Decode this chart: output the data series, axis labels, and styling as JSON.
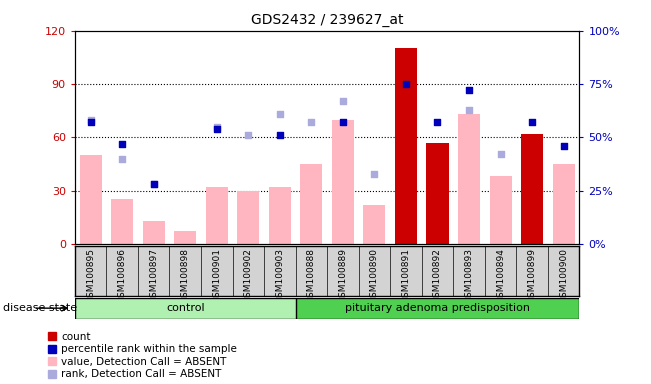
{
  "title": "GDS2432 / 239627_at",
  "samples": [
    "GSM100895",
    "GSM100896",
    "GSM100897",
    "GSM100898",
    "GSM100901",
    "GSM100902",
    "GSM100903",
    "GSM100888",
    "GSM100889",
    "GSM100890",
    "GSM100891",
    "GSM100892",
    "GSM100893",
    "GSM100894",
    "GSM100899",
    "GSM100900"
  ],
  "control_count": 7,
  "ylim_left": [
    0,
    120
  ],
  "ylim_right": [
    0,
    100
  ],
  "ytick_labels_left": [
    "0",
    "30",
    "60",
    "90",
    "120"
  ],
  "ytick_labels_right": [
    "0%",
    "25%",
    "50%",
    "75%",
    "100%"
  ],
  "bar_values": [
    50,
    25,
    13,
    7,
    32,
    30,
    32,
    45,
    70,
    22,
    110,
    57,
    73,
    38,
    62,
    45
  ],
  "bar_colors_dark": [
    false,
    false,
    false,
    false,
    false,
    false,
    false,
    false,
    false,
    false,
    true,
    true,
    false,
    false,
    true,
    false
  ],
  "scatter_blue_x": [
    0,
    1,
    2,
    4,
    6,
    8,
    10,
    11,
    12,
    14,
    15
  ],
  "scatter_blue_y": [
    57,
    47,
    28,
    54,
    51,
    57,
    75,
    57,
    72,
    57,
    46
  ],
  "scatter_light_x": [
    0,
    1,
    2,
    4,
    5,
    6,
    7,
    8,
    9,
    12,
    13
  ],
  "scatter_light_y": [
    58,
    40,
    28,
    55,
    51,
    61,
    57,
    67,
    33,
    63,
    42
  ],
  "group_labels": [
    "control",
    "pituitary adenoma predisposition"
  ],
  "control_color": "#b0f0b0",
  "pituitary_color": "#50d050",
  "disease_state_label": "disease state",
  "bar_color_dark": "#cc0000",
  "bar_color_light": "#ffb6c1",
  "scatter_dark_color": "#0000bb",
  "scatter_light_color": "#aaaadd",
  "bg_color": "#ffffff",
  "plot_bg": "#ffffff",
  "axis_color_left": "#cc0000",
  "axis_color_right": "#0000bb",
  "gray_bg": "#d3d3d3"
}
